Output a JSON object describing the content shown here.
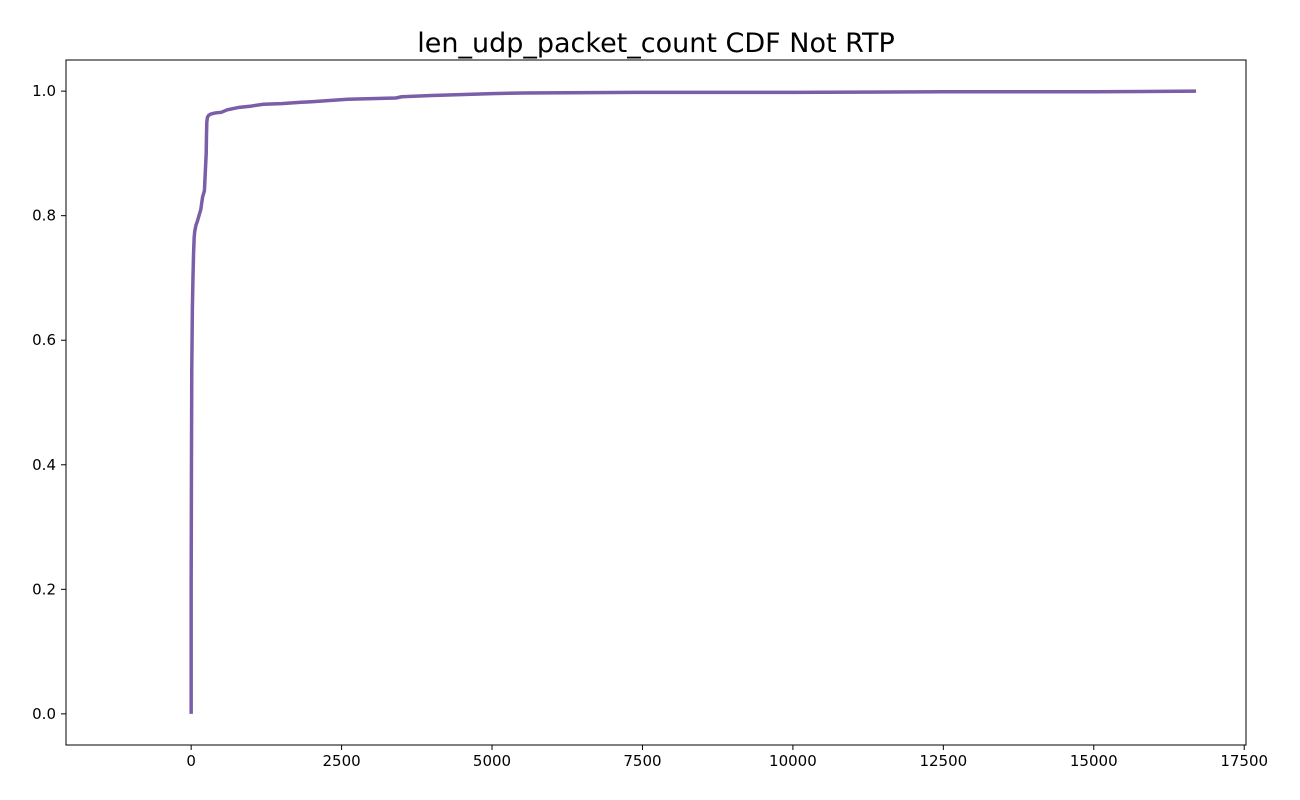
{
  "chart_data": {
    "type": "line",
    "title": "len_udp_packet_count CDF Not RTP",
    "xlabel": "",
    "ylabel": "",
    "xlim": [
      -2080,
      17530
    ],
    "ylim": [
      -0.05,
      1.05
    ],
    "x_ticks": [
      0,
      2500,
      5000,
      7500,
      10000,
      12500,
      15000,
      17500
    ],
    "x_tick_labels": [
      "0",
      "2500",
      "5000",
      "7500",
      "10000",
      "12500",
      "15000",
      "17500"
    ],
    "y_ticks": [
      0.0,
      0.2,
      0.4,
      0.6,
      0.8,
      1.0
    ],
    "y_tick_labels": [
      "0.0",
      "0.2",
      "0.4",
      "0.6",
      "0.8",
      "1.0"
    ],
    "grid": false,
    "legend": "none",
    "series": [
      {
        "color": "#7b5ea7",
        "x": [
          0,
          0,
          5,
          10,
          20,
          30,
          40,
          50,
          60,
          80,
          100,
          130,
          160,
          190,
          220,
          240,
          250,
          255,
          260,
          270,
          290,
          320,
          400,
          500,
          550,
          600,
          700,
          800,
          1000,
          1200,
          1500,
          1800,
          2000,
          2300,
          2600,
          3000,
          3400,
          3500,
          4000,
          5000,
          5500,
          7500,
          10000,
          12500,
          15000,
          16700
        ],
        "y": [
          0.0,
          0.2,
          0.4,
          0.55,
          0.65,
          0.7,
          0.74,
          0.765,
          0.775,
          0.785,
          0.79,
          0.8,
          0.81,
          0.83,
          0.84,
          0.88,
          0.9,
          0.93,
          0.95,
          0.958,
          0.961,
          0.963,
          0.965,
          0.966,
          0.968,
          0.97,
          0.972,
          0.974,
          0.976,
          0.979,
          0.98,
          0.982,
          0.983,
          0.985,
          0.987,
          0.988,
          0.989,
          0.991,
          0.993,
          0.996,
          0.997,
          0.998,
          0.998,
          0.999,
          0.999,
          1.0
        ]
      }
    ]
  }
}
